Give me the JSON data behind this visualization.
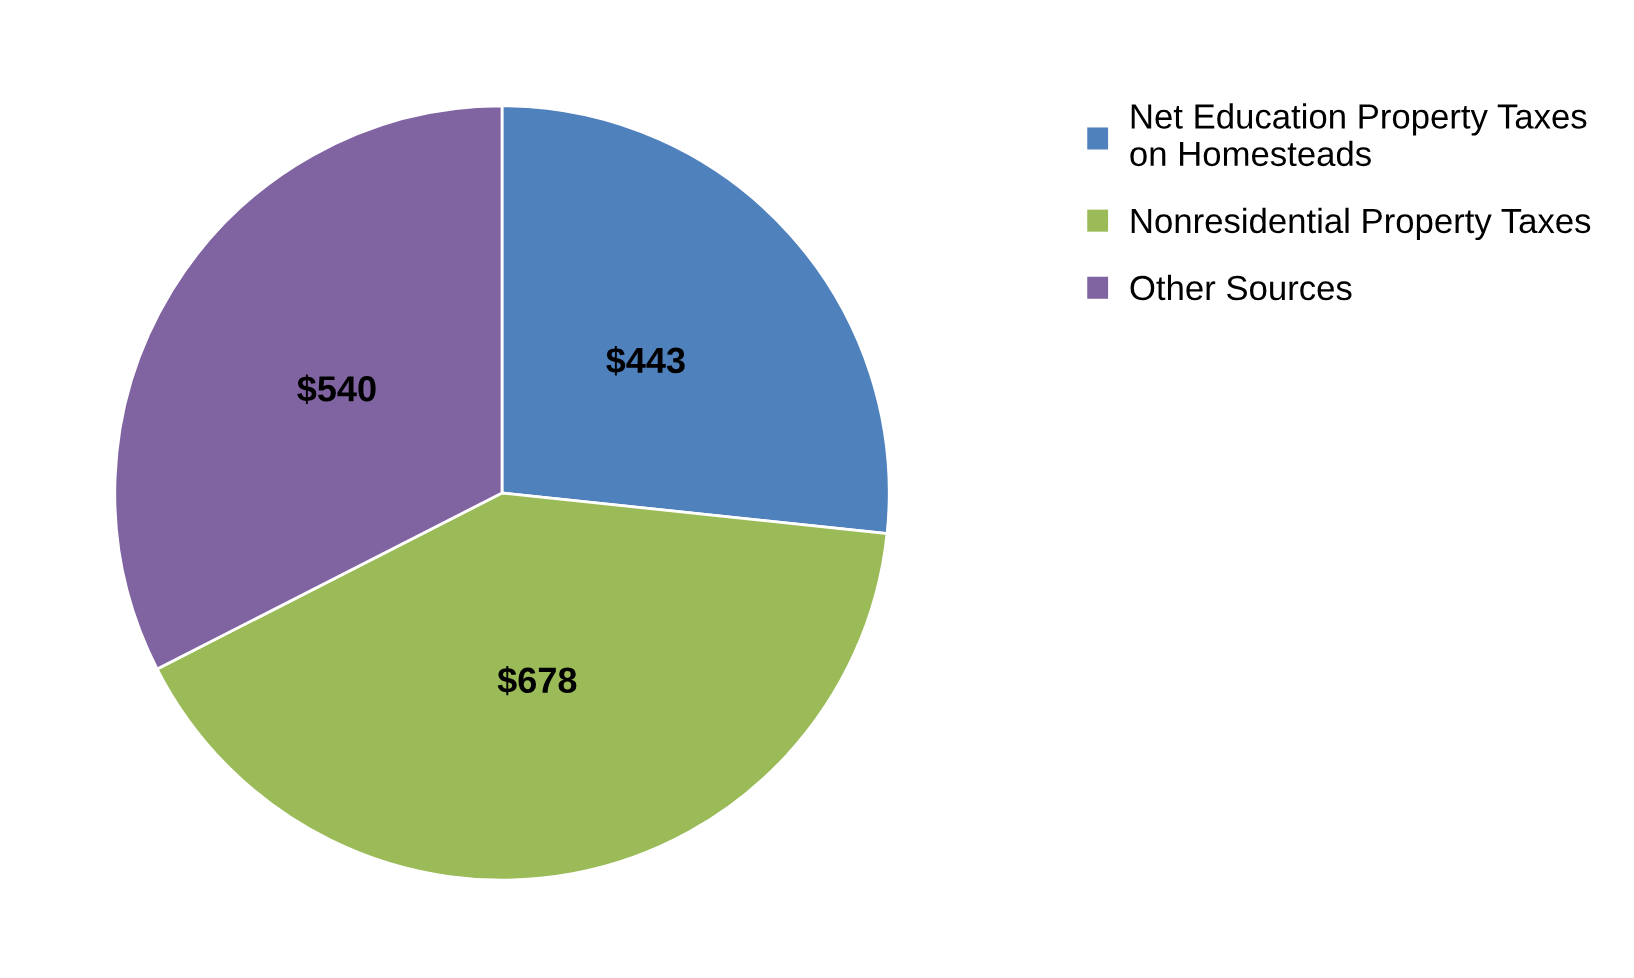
{
  "chart_data": {
    "type": "pie",
    "categories": [
      "Net Education Property Taxes\non Homesteads",
      "Nonresidential Property Taxes",
      "Other Sources"
    ],
    "values": [
      443,
      678,
      540
    ],
    "value_labels": [
      "$443",
      "$678",
      "$540"
    ],
    "colors": [
      "#4f81bd",
      "#9bbb59",
      "#8064a2"
    ],
    "legend": "right"
  }
}
